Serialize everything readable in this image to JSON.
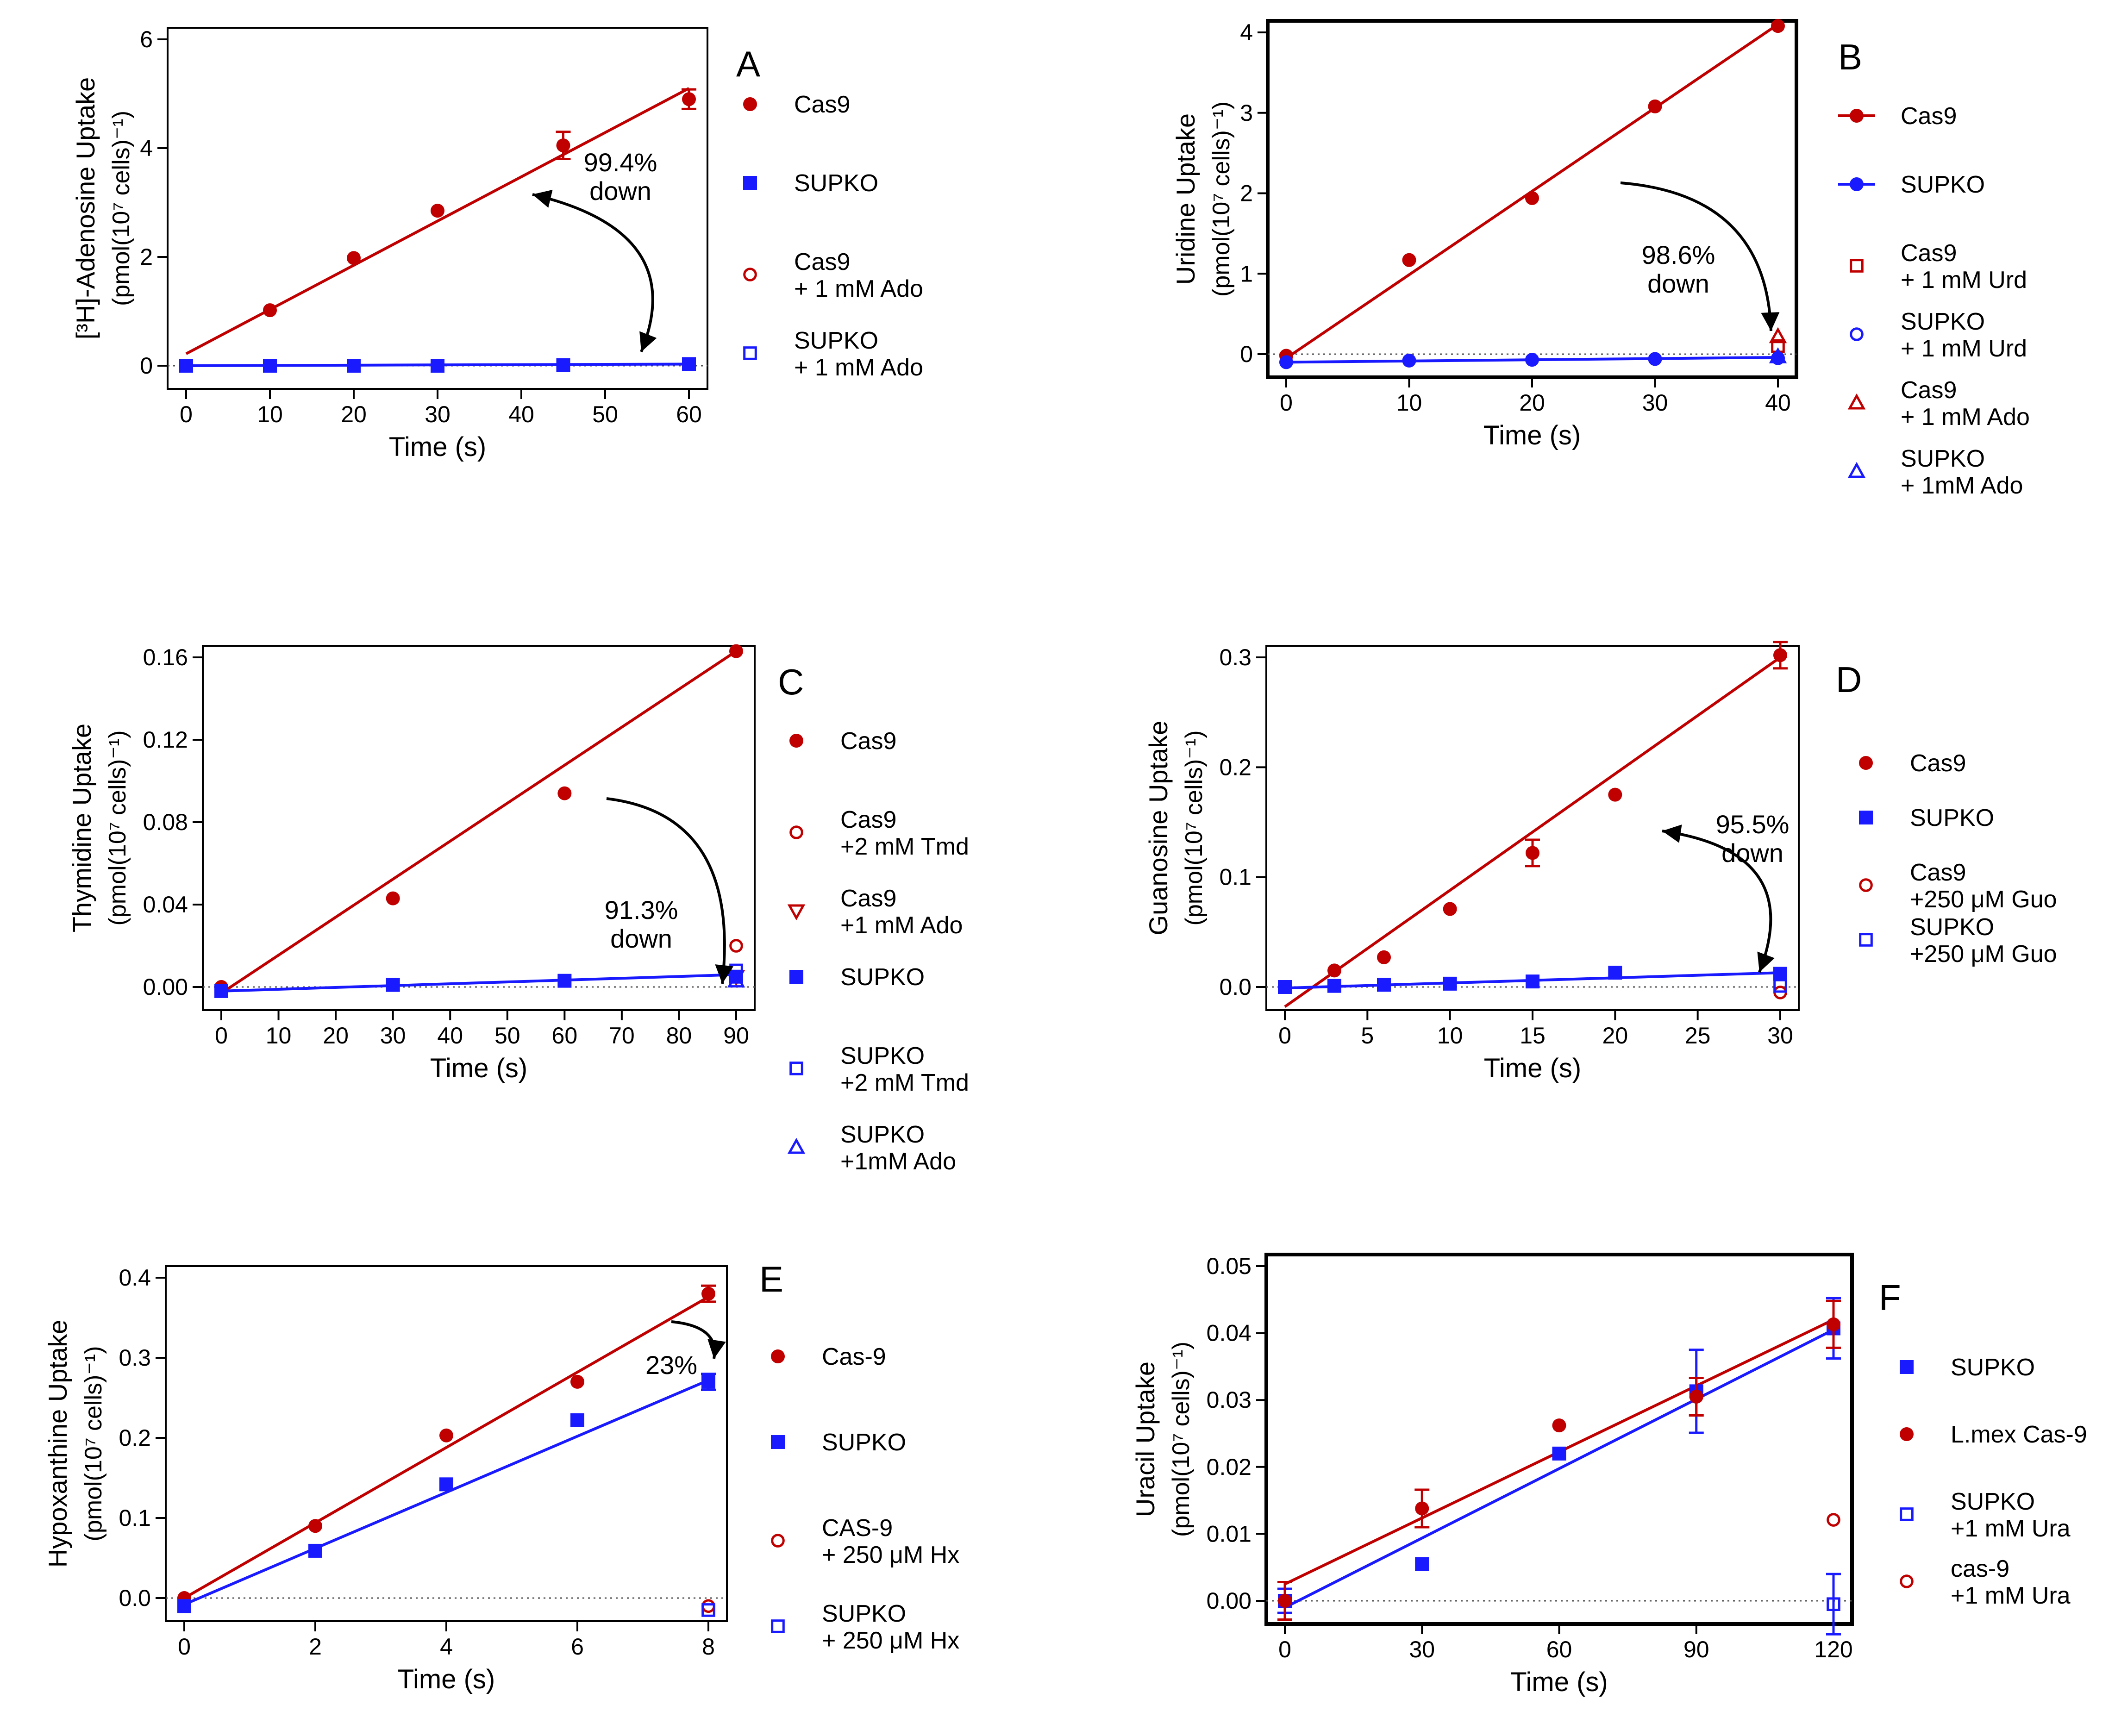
{
  "chart_data": [
    {
      "type": "scatter",
      "panel_label": "A",
      "title": "",
      "ylabel_line1": "[³H]-Adenosine Uptake",
      "ylabel_line2": "(pmol(10⁷ cells)⁻¹)",
      "xlabel": "Time (s)",
      "xlim": [
        0,
        60
      ],
      "ylim": [
        0,
        6
      ],
      "xticks": [
        "0",
        "10",
        "20",
        "30",
        "40",
        "50",
        "60"
      ],
      "yticks": [
        "0",
        "2",
        "4",
        "6"
      ],
      "series": [
        {
          "name": "Cas9",
          "marker": "circle-filled",
          "color": "#c00000",
          "x": [
            0,
            10,
            20,
            30,
            45,
            60
          ],
          "y": [
            0.0,
            1.02,
            1.98,
            2.85,
            4.05,
            4.9
          ],
          "err": [
            0,
            0,
            0,
            0,
            0.25,
            0.18
          ],
          "fit": [
            [
              0,
              0.22
            ],
            [
              60,
              5.1
            ]
          ]
        },
        {
          "name": "SUPKO",
          "marker": "square-filled",
          "color": "#1a1aff",
          "x": [
            0,
            10,
            20,
            30,
            45,
            60
          ],
          "y": [
            0.0,
            0.0,
            0.0,
            0.0,
            0.01,
            0.03
          ],
          "err": [
            0,
            0,
            0,
            0,
            0,
            0
          ],
          "fit": [
            [
              0,
              0.0
            ],
            [
              60,
              0.03
            ]
          ]
        },
        {
          "name": "Cas9\n+ 1 mM Ado",
          "marker": "circle-open",
          "color": "#c00000",
          "x": [],
          "y": [],
          "err": []
        },
        {
          "name": "SUPKO\n+ 1 mM Ado",
          "marker": "square-open",
          "color": "#1a1aff",
          "x": [],
          "y": [],
          "err": []
        }
      ],
      "annotation": {
        "text": "99.4%\ndown"
      }
    },
    {
      "type": "scatter",
      "panel_label": "B",
      "title": "",
      "ylabel_line1": "Uridine Uptake",
      "ylabel_line2": "(pmol(10⁷ cells)⁻¹)",
      "xlabel": "Time (s)",
      "xlim": [
        0,
        40
      ],
      "ylim": [
        0,
        4
      ],
      "xticks": [
        "0",
        "10",
        "20",
        "30",
        "40"
      ],
      "yticks": [
        "0",
        "1",
        "2",
        "3",
        "4"
      ],
      "series": [
        {
          "name": "Cas9",
          "marker": "circle-filled",
          "color": "#c00000",
          "x": [
            0,
            10,
            20,
            30,
            40
          ],
          "y": [
            -0.02,
            1.17,
            1.94,
            3.08,
            4.08
          ],
          "err": [
            0,
            0,
            0,
            0,
            0
          ],
          "fit": [
            [
              0,
              -0.05
            ],
            [
              40,
              4.1
            ]
          ]
        },
        {
          "name": "SUPKO",
          "marker": "circle-filled",
          "color": "#1a1aff",
          "x": [
            0,
            10,
            20,
            30,
            40
          ],
          "y": [
            -0.1,
            -0.08,
            -0.07,
            -0.06,
            -0.05
          ],
          "err": [
            0,
            0,
            0,
            0,
            0
          ],
          "fit": [
            [
              0,
              -0.1
            ],
            [
              40,
              -0.04
            ]
          ]
        },
        {
          "name": "Cas9\n+ 1 mM Urd",
          "marker": "square-open",
          "color": "#c00000",
          "x": [
            40
          ],
          "y": [
            0.1
          ],
          "err": [
            0
          ]
        },
        {
          "name": "SUPKO\n+ 1 mM Urd",
          "marker": "circle-open",
          "color": "#1a1aff",
          "x": [
            40
          ],
          "y": [
            -0.05
          ],
          "err": [
            0
          ]
        },
        {
          "name": "Cas9\n+ 1 mM Ado",
          "marker": "triangle-open",
          "color": "#c00000",
          "x": [
            40
          ],
          "y": [
            0.22
          ],
          "err": [
            0
          ]
        },
        {
          "name": "SUPKO\n+ 1mM Ado",
          "marker": "triangle-open",
          "color": "#1a1aff",
          "x": [
            40
          ],
          "y": [
            -0.03
          ],
          "err": [
            0
          ]
        }
      ],
      "annotation": {
        "text": "98.6%\ndown"
      }
    },
    {
      "type": "scatter",
      "panel_label": "C",
      "title": "",
      "ylabel_line1": "Thymidine Uptake",
      "ylabel_line2": "(pmol(10⁷ cells)⁻¹)",
      "xlabel": "Time (s)",
      "xlim": [
        0,
        90
      ],
      "ylim": [
        0,
        0.16
      ],
      "xticks": [
        "0",
        "10",
        "20",
        "30",
        "40",
        "50",
        "60",
        "70",
        "80",
        "90"
      ],
      "yticks": [
        "0.00",
        "0.04",
        "0.08",
        "0.12",
        "0.16"
      ],
      "series": [
        {
          "name": "Cas9",
          "marker": "circle-filled",
          "color": "#c00000",
          "x": [
            0,
            30,
            60,
            90
          ],
          "y": [
            0.0,
            0.043,
            0.094,
            0.163
          ],
          "err": [
            0,
            0,
            0,
            0
          ],
          "fit": [
            [
              0,
              -0.003
            ],
            [
              90,
              0.163
            ]
          ]
        },
        {
          "name": "Cas9\n+2 mM Tmd",
          "marker": "circle-open",
          "color": "#c00000",
          "x": [
            90
          ],
          "y": [
            0.02
          ],
          "err": [
            0
          ]
        },
        {
          "name": "Cas9\n+1 mM Ado",
          "marker": "triangle-down-open",
          "color": "#c00000",
          "x": [
            90
          ],
          "y": [
            0.005
          ],
          "err": [
            0
          ]
        },
        {
          "name": "SUPKO",
          "marker": "square-filled",
          "color": "#1a1aff",
          "x": [
            0,
            30,
            60,
            90
          ],
          "y": [
            -0.002,
            0.001,
            0.003,
            0.005
          ],
          "err": [
            0,
            0,
            0,
            0
          ],
          "fit": [
            [
              0,
              -0.002
            ],
            [
              90,
              0.006
            ]
          ]
        },
        {
          "name": "SUPKO\n+2 mM Tmd",
          "marker": "square-open",
          "color": "#1a1aff",
          "x": [
            90
          ],
          "y": [
            0.008
          ],
          "err": [
            0
          ]
        },
        {
          "name": "SUPKO\n+1mM Ado",
          "marker": "triangle-open",
          "color": "#1a1aff",
          "x": [
            90
          ],
          "y": [
            0.003
          ],
          "err": [
            0
          ]
        }
      ],
      "annotation": {
        "text": "91.3%\ndown"
      }
    },
    {
      "type": "scatter",
      "panel_label": "D",
      "title": "",
      "ylabel_line1": "Guanosine Uptake",
      "ylabel_line2": "(pmol(10⁷ cells)⁻¹)",
      "xlabel": "Time (s)",
      "xlim": [
        0,
        30
      ],
      "ylim": [
        0,
        0.3
      ],
      "xticks": [
        "0",
        "5",
        "10",
        "15",
        "20",
        "25",
        "30"
      ],
      "yticks": [
        "0.0",
        "0.1",
        "0.2",
        "0.3"
      ],
      "series": [
        {
          "name": "Cas9",
          "marker": "circle-filled",
          "color": "#c00000",
          "x": [
            0,
            3,
            6,
            10,
            15,
            20,
            30
          ],
          "y": [
            0.0,
            0.015,
            0.027,
            0.071,
            0.122,
            0.175,
            0.302
          ],
          "err": [
            0,
            0,
            0,
            0,
            0.012,
            0,
            0.012
          ],
          "fit": [
            [
              0,
              -0.018
            ],
            [
              30,
              0.3
            ]
          ]
        },
        {
          "name": "SUPKO",
          "marker": "square-filled",
          "color": "#1a1aff",
          "x": [
            0,
            3,
            6,
            10,
            15,
            20,
            30
          ],
          "y": [
            0.0,
            0.001,
            0.002,
            0.003,
            0.005,
            0.013,
            0.012
          ],
          "err": [
            0,
            0,
            0,
            0,
            0,
            0,
            0
          ],
          "fit": [
            [
              0,
              -0.001
            ],
            [
              30,
              0.013
            ]
          ]
        },
        {
          "name": "Cas9\n+250 μM Guo",
          "marker": "circle-open",
          "color": "#c00000",
          "x": [
            30
          ],
          "y": [
            -0.005
          ],
          "err": [
            0
          ]
        },
        {
          "name": "SUPKO\n+250 μM Guo",
          "marker": "square-open",
          "color": "#1a1aff",
          "x": [
            30
          ],
          "y": [
            0.001
          ],
          "err": [
            0
          ]
        }
      ],
      "annotation": {
        "text": "95.5%\ndown"
      }
    },
    {
      "type": "scatter",
      "panel_label": "E",
      "title": "",
      "ylabel_line1": "Hypoxanthine Uptake",
      "ylabel_line2": "(pmol(10⁷ cells)⁻¹)",
      "xlabel": "Time (s)",
      "xlim": [
        0,
        8
      ],
      "ylim": [
        0,
        0.4
      ],
      "xticks": [
        "0",
        "2",
        "4",
        "6",
        "8"
      ],
      "yticks": [
        "0.0",
        "0.1",
        "0.2",
        "0.3",
        "0.4"
      ],
      "series": [
        {
          "name": "Cas-9",
          "marker": "circle-filled",
          "color": "#c00000",
          "x": [
            0,
            2,
            4,
            6,
            8
          ],
          "y": [
            0.0,
            0.09,
            0.203,
            0.27,
            0.38
          ],
          "err": [
            0,
            0,
            0,
            0,
            0.01
          ],
          "fit": [
            [
              0,
              0.0
            ],
            [
              8,
              0.376
            ]
          ]
        },
        {
          "name": "SUPKO",
          "marker": "square-filled",
          "color": "#1a1aff",
          "x": [
            0,
            2,
            4,
            6,
            8
          ],
          "y": [
            -0.01,
            0.059,
            0.142,
            0.222,
            0.27
          ],
          "err": [
            0,
            0,
            0,
            0,
            0.01
          ],
          "fit": [
            [
              0,
              -0.008
            ],
            [
              8,
              0.272
            ]
          ]
        },
        {
          "name": "CAS-9\n+ 250 μM Hx",
          "marker": "circle-open",
          "color": "#c00000",
          "x": [
            8
          ],
          "y": [
            -0.01
          ],
          "err": [
            0
          ]
        },
        {
          "name": "SUPKO\n+ 250 μM Hx",
          "marker": "square-open",
          "color": "#1a1aff",
          "x": [
            8
          ],
          "y": [
            -0.015
          ],
          "err": [
            0
          ]
        }
      ],
      "annotation": {
        "text": "23%"
      }
    },
    {
      "type": "scatter",
      "panel_label": "F",
      "title": "",
      "ylabel_line1": "Uracil Uptake",
      "ylabel_line2": "(pmol(10⁷ cells)⁻¹)",
      "xlabel": "Time (s)",
      "xlim": [
        0,
        120
      ],
      "ylim": [
        0,
        0.05
      ],
      "xticks": [
        "0",
        "30",
        "60",
        "90",
        "120"
      ],
      "yticks": [
        "0.00",
        "0.01",
        "0.02",
        "0.03",
        "0.04",
        "0.05"
      ],
      "series": [
        {
          "name": "SUPKO",
          "marker": "square-filled",
          "color": "#1a1aff",
          "x": [
            0,
            30,
            60,
            90,
            120
          ],
          "y": [
            0.0,
            0.0055,
            0.022,
            0.0313,
            0.0407
          ],
          "err": [
            0.0018,
            0,
            0,
            0.0062,
            0.0045
          ],
          "fit": [
            [
              0,
              -0.001
            ],
            [
              120,
              0.0405
            ]
          ]
        },
        {
          "name": "L.mex Cas-9",
          "marker": "circle-filled",
          "color": "#c00000",
          "x": [
            0,
            30,
            60,
            90,
            120
          ],
          "y": [
            0.0,
            0.0138,
            0.0262,
            0.0305,
            0.0413
          ],
          "err": [
            0.0028,
            0.0028,
            0,
            0.0028,
            0.0035
          ],
          "fit": [
            [
              0,
              0.0025
            ],
            [
              120,
              0.042
            ]
          ]
        },
        {
          "name": "SUPKO\n+1 mM Ura",
          "marker": "square-open",
          "color": "#1a1aff",
          "x": [
            120
          ],
          "y": [
            -0.0005
          ],
          "err": [
            0.0045
          ]
        },
        {
          "name": "cas-9\n+1 mM Ura",
          "marker": "circle-open",
          "color": "#c00000",
          "x": [
            120
          ],
          "y": [
            0.0121
          ],
          "err": [
            0
          ]
        }
      ],
      "annotation": {
        "text": ""
      }
    }
  ]
}
